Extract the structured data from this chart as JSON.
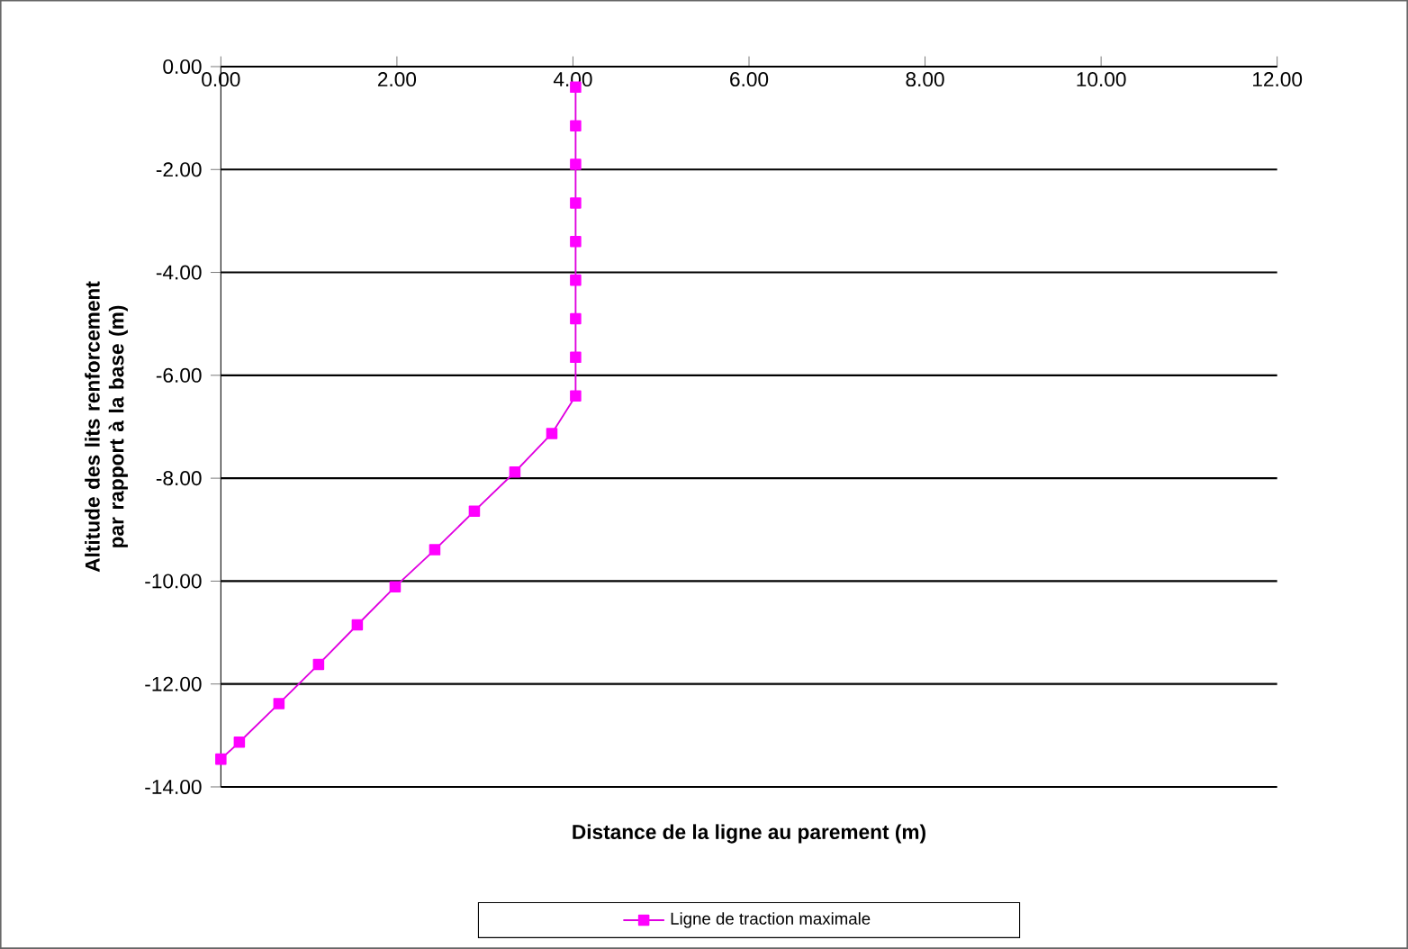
{
  "chart_data": {
    "type": "line",
    "xlabel": "Distance de la ligne au parement (m)",
    "ylabel": "Altitude des lits renforcement par rapport à la base (m)",
    "xlim": [
      0,
      12
    ],
    "ylim": [
      -14,
      0
    ],
    "xticks": [
      {
        "value": 0,
        "label": "0.00"
      },
      {
        "value": 2,
        "label": "2.00"
      },
      {
        "value": 4,
        "label": "4.00"
      },
      {
        "value": 6,
        "label": "6.00"
      },
      {
        "value": 8,
        "label": "8.00"
      },
      {
        "value": 10,
        "label": "10.00"
      },
      {
        "value": 12,
        "label": "12.00"
      }
    ],
    "yticks": [
      {
        "value": 0,
        "label": "0.00"
      },
      {
        "value": -2,
        "label": "-2.00"
      },
      {
        "value": -4,
        "label": "-4.00"
      },
      {
        "value": -6,
        "label": "-6.00"
      },
      {
        "value": -8,
        "label": "-8.00"
      },
      {
        "value": -10,
        "label": "-10.00"
      },
      {
        "value": -12,
        "label": "-12.00"
      },
      {
        "value": -14,
        "label": "-14.00"
      }
    ],
    "grid": "y",
    "legend": "bottom",
    "marker": "square",
    "line_style": "solid",
    "series": [
      {
        "name": "Ligne de traction maximale",
        "color": "#ff00ff",
        "x": [
          4.03,
          4.03,
          4.03,
          4.03,
          4.03,
          4.03,
          4.03,
          4.03,
          4.03,
          3.76,
          3.34,
          2.88,
          2.43,
          1.98,
          1.55,
          1.11,
          0.66,
          0.21,
          0.0
        ],
        "values": [
          -0.4,
          -1.15,
          -1.9,
          -2.65,
          -3.4,
          -4.15,
          -4.9,
          -5.65,
          -6.4,
          -7.13,
          -7.88,
          -8.64,
          -9.39,
          -10.11,
          -10.85,
          -11.62,
          -12.38,
          -13.13,
          -13.46
        ]
      }
    ]
  }
}
